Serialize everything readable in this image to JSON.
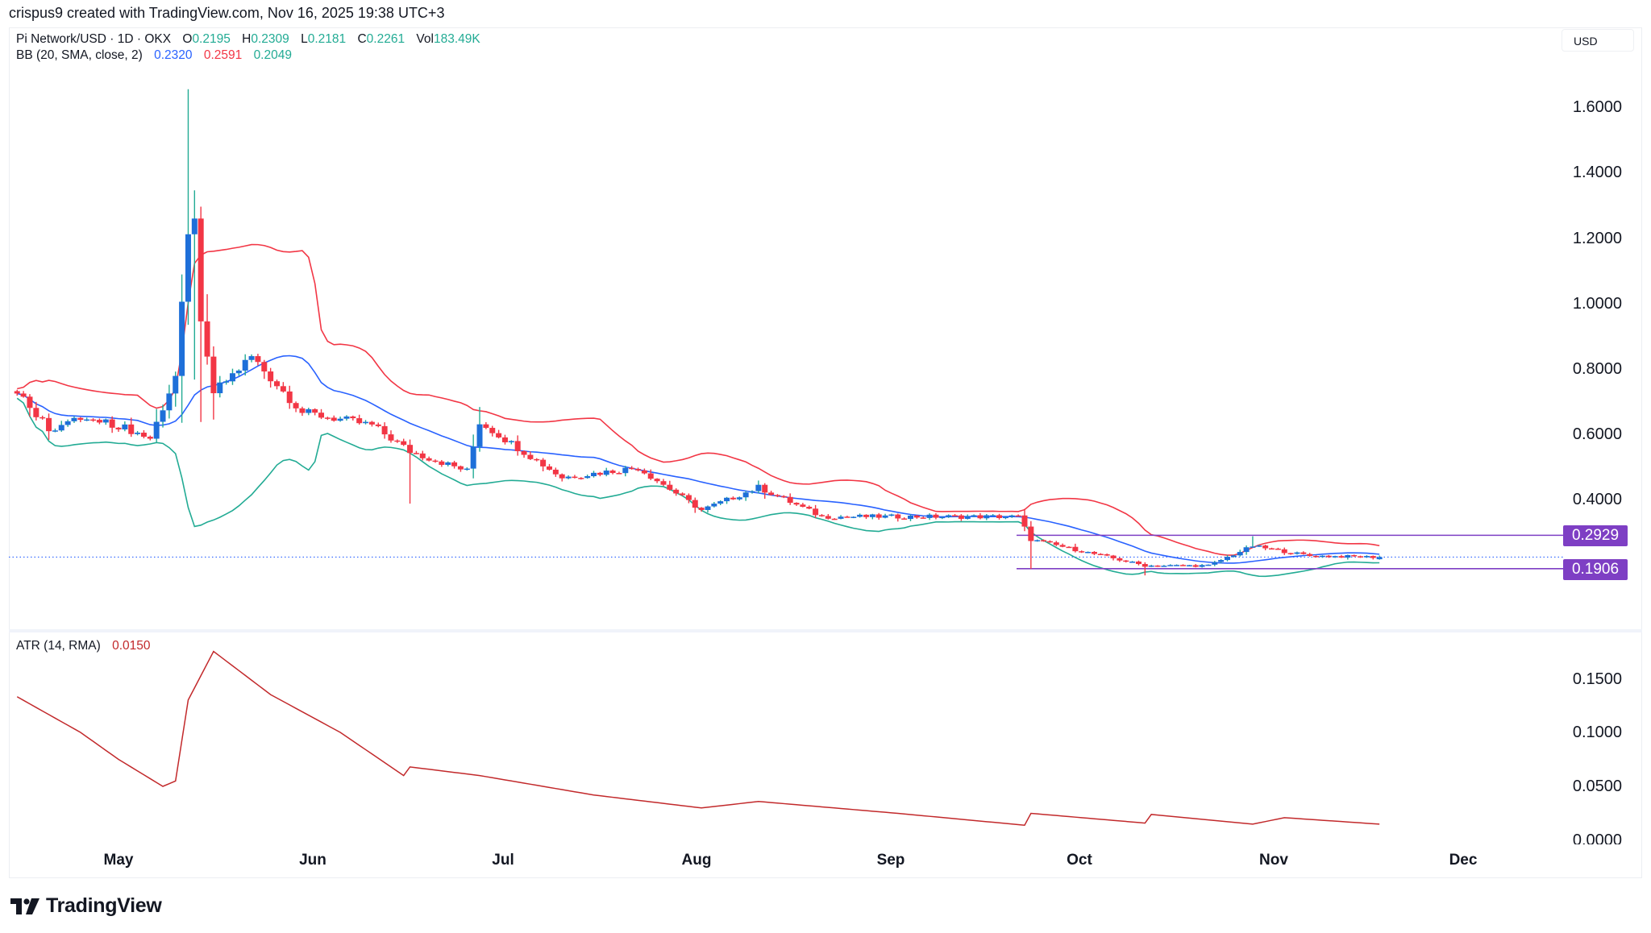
{
  "attribution": "crispus9 created with TradingView.com, Nov 16, 2025 19:38 UTC+3",
  "symbol": {
    "title": "Pi Network/USD · 1D · OKX",
    "open_label": "O",
    "open": "0.2195",
    "high_label": "H",
    "high": "0.2309",
    "low_label": "L",
    "low": "0.2181",
    "close_label": "C",
    "close": "0.2261",
    "vol_label": "Vol",
    "vol": "183.49",
    "vol_unit": "K"
  },
  "bb": {
    "label": "BB (20, SMA, close, 2)",
    "basis": "0.2320",
    "upper": "0.2591",
    "lower": "0.2049"
  },
  "atr": {
    "label": "ATR (14, RMA)",
    "value": "0.0150"
  },
  "currency_button": "USD",
  "price_axis": [
    "1.6000",
    "1.4000",
    "1.2000",
    "1.0000",
    "0.8000",
    "0.6000",
    "0.4000"
  ],
  "atr_axis": [
    "0.1500",
    "0.1000",
    "0.0500",
    "0.0000"
  ],
  "price_tags": {
    "upper": "0.2929",
    "lower": "0.1906"
  },
  "months": [
    "May",
    "Jun",
    "Jul",
    "Aug",
    "Sep",
    "Oct",
    "Nov",
    "Dec"
  ],
  "logo": "TradingView",
  "colors": {
    "up_body": "#1e6fd9",
    "up_wick": "#22ab94",
    "down": "#f23645",
    "bb_basis": "#2962ff",
    "bb_upper": "#f23645",
    "bb_lower": "#22ab94",
    "atr": "#c2292b",
    "level": "#7e3fc4",
    "last_price_line": "#2962ff"
  },
  "chart_data": [
    {
      "type": "candlestick",
      "title": "Pi Network/USD · 1D · OKX",
      "x_labels": [
        "May",
        "Jun",
        "Jul",
        "Aug",
        "Sep",
        "Oct",
        "Nov",
        "Dec"
      ],
      "ylim": [
        0.1,
        1.7
      ],
      "y_ticks": [
        0.4,
        0.6,
        0.8,
        1.0,
        1.2,
        1.4,
        1.6
      ],
      "last": {
        "open": 0.2195,
        "high": 0.2309,
        "low": 0.2181,
        "close": 0.2261,
        "volume": "183.49K"
      },
      "horizontal_levels": [
        0.2929,
        0.1906
      ],
      "approx_close_path": [
        {
          "date": "Apr-15",
          "close": 0.74
        },
        {
          "date": "Apr-20",
          "close": 0.62
        },
        {
          "date": "Apr-25",
          "close": 0.65
        },
        {
          "date": "May-01",
          "close": 0.63
        },
        {
          "date": "May-06",
          "close": 0.59
        },
        {
          "date": "May-10",
          "close": 0.78
        },
        {
          "date": "May-12",
          "close": 1.2
        },
        {
          "date": "May-13",
          "close": 1.28
        },
        {
          "date": "May-14",
          "close": 0.93
        },
        {
          "date": "May-16",
          "close": 0.73
        },
        {
          "date": "May-22",
          "close": 0.84
        },
        {
          "date": "May-30",
          "close": 0.67
        },
        {
          "date": "Jun-10",
          "close": 0.63
        },
        {
          "date": "Jun-16",
          "close": 0.55
        },
        {
          "date": "Jun-25",
          "close": 0.49
        },
        {
          "date": "Jun-27",
          "close": 0.64
        },
        {
          "date": "Jul-10",
          "close": 0.47
        },
        {
          "date": "Jul-22",
          "close": 0.5
        },
        {
          "date": "Aug-01",
          "close": 0.37
        },
        {
          "date": "Aug-10",
          "close": 0.44
        },
        {
          "date": "Aug-20",
          "close": 0.35
        },
        {
          "date": "Sep-01",
          "close": 0.35
        },
        {
          "date": "Sep-20",
          "close": 0.35
        },
        {
          "date": "Sep-22",
          "close": 0.28
        },
        {
          "date": "Oct-10",
          "close": 0.2
        },
        {
          "date": "Oct-20",
          "close": 0.2
        },
        {
          "date": "Oct-27",
          "close": 0.26
        },
        {
          "date": "Nov-05",
          "close": 0.23
        },
        {
          "date": "Nov-16",
          "close": 0.2261
        }
      ],
      "series": [
        {
          "name": "BB basis (SMA 20)",
          "last": 0.232
        },
        {
          "name": "BB upper",
          "last": 0.2591
        },
        {
          "name": "BB lower",
          "last": 0.2049
        }
      ]
    },
    {
      "type": "line",
      "title": "ATR (14, RMA)",
      "ylim": [
        0,
        0.18
      ],
      "y_ticks": [
        0.0,
        0.05,
        0.1,
        0.15
      ],
      "series": [
        {
          "name": "ATR",
          "points": [
            {
              "date": "Apr-15",
              "value": 0.133
            },
            {
              "date": "Apr-25",
              "value": 0.1
            },
            {
              "date": "May-01",
              "value": 0.075
            },
            {
              "date": "May-08",
              "value": 0.05
            },
            {
              "date": "May-10",
              "value": 0.055
            },
            {
              "date": "May-12",
              "value": 0.13
            },
            {
              "date": "May-16",
              "value": 0.175
            },
            {
              "date": "May-25",
              "value": 0.135
            },
            {
              "date": "Jun-05",
              "value": 0.1
            },
            {
              "date": "Jun-15",
              "value": 0.06
            },
            {
              "date": "Jun-16",
              "value": 0.068
            },
            {
              "date": "Jun-27",
              "value": 0.06
            },
            {
              "date": "Jul-15",
              "value": 0.042
            },
            {
              "date": "Aug-01",
              "value": 0.03
            },
            {
              "date": "Aug-10",
              "value": 0.036
            },
            {
              "date": "Sep-01",
              "value": 0.025
            },
            {
              "date": "Sep-21",
              "value": 0.014
            },
            {
              "date": "Sep-22",
              "value": 0.025
            },
            {
              "date": "Oct-10",
              "value": 0.016
            },
            {
              "date": "Oct-11",
              "value": 0.024
            },
            {
              "date": "Oct-27",
              "value": 0.015
            },
            {
              "date": "Nov-01",
              "value": 0.021
            },
            {
              "date": "Nov-16",
              "value": 0.015
            }
          ]
        }
      ],
      "last": 0.015
    }
  ]
}
